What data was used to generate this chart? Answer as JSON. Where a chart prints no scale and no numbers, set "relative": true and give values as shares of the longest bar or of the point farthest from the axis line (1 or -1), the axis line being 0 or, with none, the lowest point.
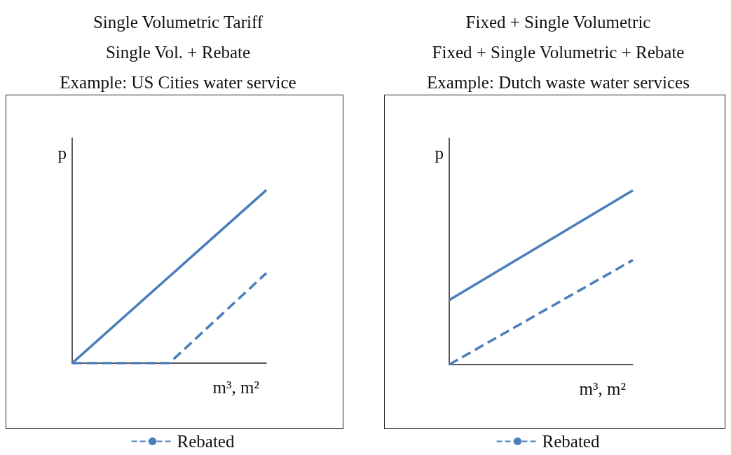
{
  "chart_data": [
    {
      "type": "line",
      "title": "Single Volumetric Tariff",
      "subtitle": "Single Vol. + Rebate",
      "annotations": [
        "Example: US Cities water service"
      ],
      "xlabel": "m³, m²",
      "ylabel": "p",
      "relative": true,
      "legend": "bottom",
      "categories": [
        null,
        null,
        null
      ],
      "series": [
        {
          "color": "#4a7ebb",
          "values": [
            0,
            0.5,
            1
          ],
          "line_style": "solid"
        },
        {
          "name": "Rebated",
          "color": "#4a7ebb",
          "values": [
            0,
            0,
            0.52
          ],
          "line_style": "dashed"
        }
      ]
    },
    {
      "type": "line",
      "title": "Fixed + Single Volumetric",
      "subtitle": "Fixed + Single Volumetric + Rebate",
      "annotations": [
        "Example: Dutch waste water services"
      ],
      "xlabel": "m³, m²",
      "ylabel": "p",
      "relative": true,
      "legend": "bottom",
      "categories": [
        null,
        null
      ],
      "series": [
        {
          "color": "#4a7ebb",
          "values": [
            0.37,
            1
          ],
          "line_style": "solid"
        },
        {
          "name": "Rebated",
          "color": "#4a7ebb",
          "values": [
            0,
            0.6
          ],
          "line_style": "dashed"
        }
      ]
    }
  ]
}
